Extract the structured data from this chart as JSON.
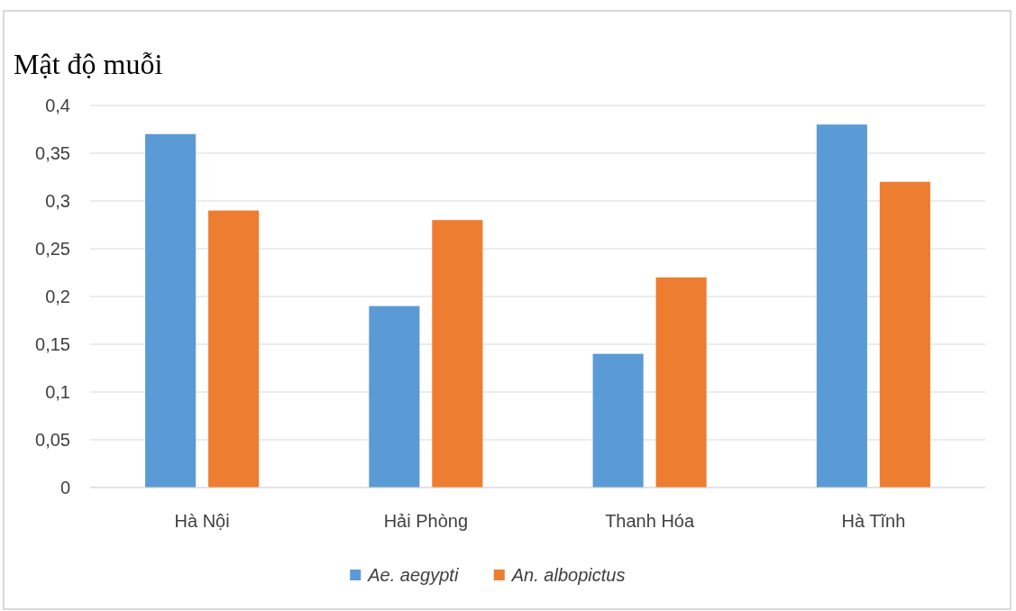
{
  "chart_data": {
    "type": "bar",
    "title": "Mật độ muỗi",
    "categories": [
      "Hà Nội",
      "Hải Phòng",
      "Thanh Hóa",
      "Hà Tĩnh"
    ],
    "series": [
      {
        "name": "Ae. aegypti",
        "color": "#5b9bd5",
        "values": [
          0.37,
          0.19,
          0.14,
          0.38
        ]
      },
      {
        "name": "An. albopictus",
        "color": "#ed7d31",
        "values": [
          0.29,
          0.28,
          0.22,
          0.32
        ]
      }
    ],
    "ylim": [
      0,
      0.4
    ],
    "yticks": [
      0,
      {
        "value": 0.05,
        "label": "0,05"
      },
      {
        "value": 0.1,
        "label": "0,1"
      },
      {
        "value": 0.15,
        "label": "0,15"
      },
      {
        "value": 0.2,
        "label": "0,2"
      },
      {
        "value": 0.25,
        "label": "0,25"
      },
      {
        "value": 0.3,
        "label": "0,3"
      },
      {
        "value": 0.35,
        "label": "0,35"
      },
      {
        "value": 0.4,
        "label": "0,4"
      }
    ],
    "grid": "y",
    "legend": "bottom"
  }
}
